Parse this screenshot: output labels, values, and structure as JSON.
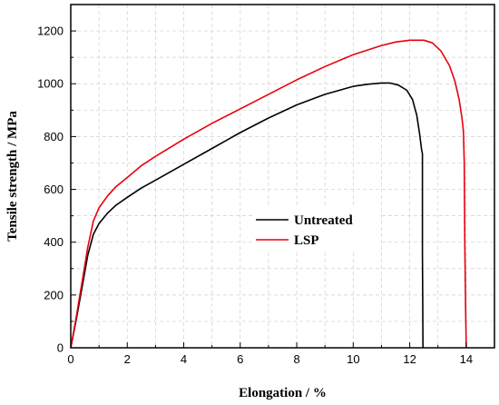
{
  "chart_data": {
    "type": "line",
    "xlabel": "Elongation / %",
    "ylabel": "Tensile strength / MPa",
    "xlim": [
      0,
      15
    ],
    "ylim": [
      0,
      1300
    ],
    "x_ticks": [
      0,
      2,
      4,
      6,
      8,
      10,
      12,
      14
    ],
    "y_ticks": [
      0,
      200,
      400,
      600,
      800,
      1000,
      1200
    ],
    "grid": true,
    "legend_position": "center-right",
    "series": [
      {
        "name": "Untreated",
        "color": "#000000",
        "x": [
          0,
          0.2,
          0.4,
          0.6,
          0.8,
          1.0,
          1.3,
          1.6,
          2.0,
          2.5,
          3.0,
          4.0,
          5.0,
          6.0,
          7.0,
          8.0,
          9.0,
          10.0,
          10.5,
          11.0,
          11.3,
          11.6,
          11.9,
          12.1,
          12.25,
          12.35,
          12.42,
          12.45,
          12.45,
          12.45,
          12.45,
          12.46,
          12.47
        ],
        "y": [
          0,
          110,
          230,
          350,
          430,
          470,
          510,
          540,
          570,
          605,
          635,
          695,
          755,
          815,
          870,
          920,
          960,
          990,
          998,
          1003,
          1003,
          995,
          975,
          940,
          880,
          810,
          750,
          735,
          620,
          460,
          360,
          200,
          0
        ]
      },
      {
        "name": "LSP",
        "color": "#e8000b",
        "x": [
          0,
          0.2,
          0.4,
          0.6,
          0.8,
          1.0,
          1.3,
          1.6,
          2.0,
          2.5,
          3.0,
          4.0,
          5.0,
          6.0,
          7.0,
          8.0,
          9.0,
          10.0,
          11.0,
          11.5,
          12.0,
          12.5,
          12.8,
          13.1,
          13.4,
          13.6,
          13.75,
          13.85,
          13.9,
          13.93,
          13.95,
          13.98,
          14.0
        ],
        "y": [
          0,
          120,
          250,
          380,
          480,
          530,
          575,
          610,
          645,
          690,
          725,
          790,
          850,
          905,
          960,
          1015,
          1065,
          1110,
          1145,
          1158,
          1165,
          1165,
          1155,
          1125,
          1070,
          1010,
          940,
          870,
          820,
          700,
          400,
          150,
          0
        ]
      }
    ]
  }
}
